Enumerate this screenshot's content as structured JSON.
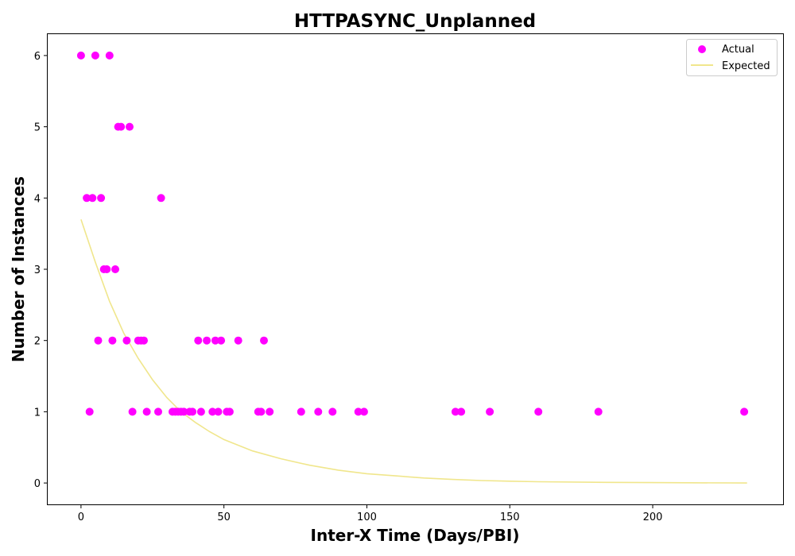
{
  "chart_data": {
    "type": "scatter",
    "title": "HTTPASYNC_Unplanned",
    "xlabel": "Inter-X Time (Days/PBI)",
    "ylabel": "Number of Instances",
    "xlim": [
      -11.65,
      245.6
    ],
    "ylim": [
      -0.3,
      6.3
    ],
    "xticks": [
      0,
      50,
      100,
      150,
      200
    ],
    "yticks": [
      0,
      1,
      2,
      3,
      4,
      5,
      6
    ],
    "grid": false,
    "legend_position": "top-right",
    "series": [
      {
        "name": "Actual",
        "kind": "scatter",
        "color": "#ff00ff",
        "points": [
          [
            0,
            6
          ],
          [
            5,
            6
          ],
          [
            10,
            6
          ],
          [
            13,
            5
          ],
          [
            14,
            5
          ],
          [
            17,
            5
          ],
          [
            2,
            4
          ],
          [
            4,
            4
          ],
          [
            7,
            4
          ],
          [
            28,
            4
          ],
          [
            8,
            3
          ],
          [
            9,
            3
          ],
          [
            12,
            3
          ],
          [
            6,
            2
          ],
          [
            11,
            2
          ],
          [
            16,
            2
          ],
          [
            20,
            2
          ],
          [
            21,
            2
          ],
          [
            22,
            2
          ],
          [
            41,
            2
          ],
          [
            44,
            2
          ],
          [
            47,
            2
          ],
          [
            49,
            2
          ],
          [
            55,
            2
          ],
          [
            64,
            2
          ],
          [
            3,
            1
          ],
          [
            18,
            1
          ],
          [
            23,
            1
          ],
          [
            27,
            1
          ],
          [
            32,
            1
          ],
          [
            33,
            1
          ],
          [
            34,
            1
          ],
          [
            35,
            1
          ],
          [
            36,
            1
          ],
          [
            38,
            1
          ],
          [
            39,
            1
          ],
          [
            42,
            1
          ],
          [
            46,
            1
          ],
          [
            48,
            1
          ],
          [
            51,
            1
          ],
          [
            52,
            1
          ],
          [
            62,
            1
          ],
          [
            63,
            1
          ],
          [
            66,
            1
          ],
          [
            77,
            1
          ],
          [
            83,
            1
          ],
          [
            88,
            1
          ],
          [
            97,
            1
          ],
          [
            99,
            1
          ],
          [
            131,
            1
          ],
          [
            133,
            1
          ],
          [
            143,
            1
          ],
          [
            160,
            1
          ],
          [
            181,
            1
          ],
          [
            232,
            1
          ]
        ]
      },
      {
        "name": "Expected",
        "kind": "line",
        "color": "#f0e68c",
        "points": [
          [
            0,
            3.7
          ],
          [
            5,
            3.1
          ],
          [
            10,
            2.55
          ],
          [
            15,
            2.1
          ],
          [
            20,
            1.75
          ],
          [
            25,
            1.45
          ],
          [
            30,
            1.2
          ],
          [
            35,
            1.0
          ],
          [
            40,
            0.85
          ],
          [
            45,
            0.72
          ],
          [
            50,
            0.61
          ],
          [
            60,
            0.45
          ],
          [
            70,
            0.34
          ],
          [
            80,
            0.25
          ],
          [
            90,
            0.18
          ],
          [
            100,
            0.13
          ],
          [
            110,
            0.1
          ],
          [
            120,
            0.07
          ],
          [
            130,
            0.05
          ],
          [
            140,
            0.035
          ],
          [
            150,
            0.025
          ],
          [
            160,
            0.018
          ],
          [
            180,
            0.01
          ],
          [
            200,
            0.005
          ],
          [
            233,
            0.0
          ]
        ]
      }
    ]
  }
}
